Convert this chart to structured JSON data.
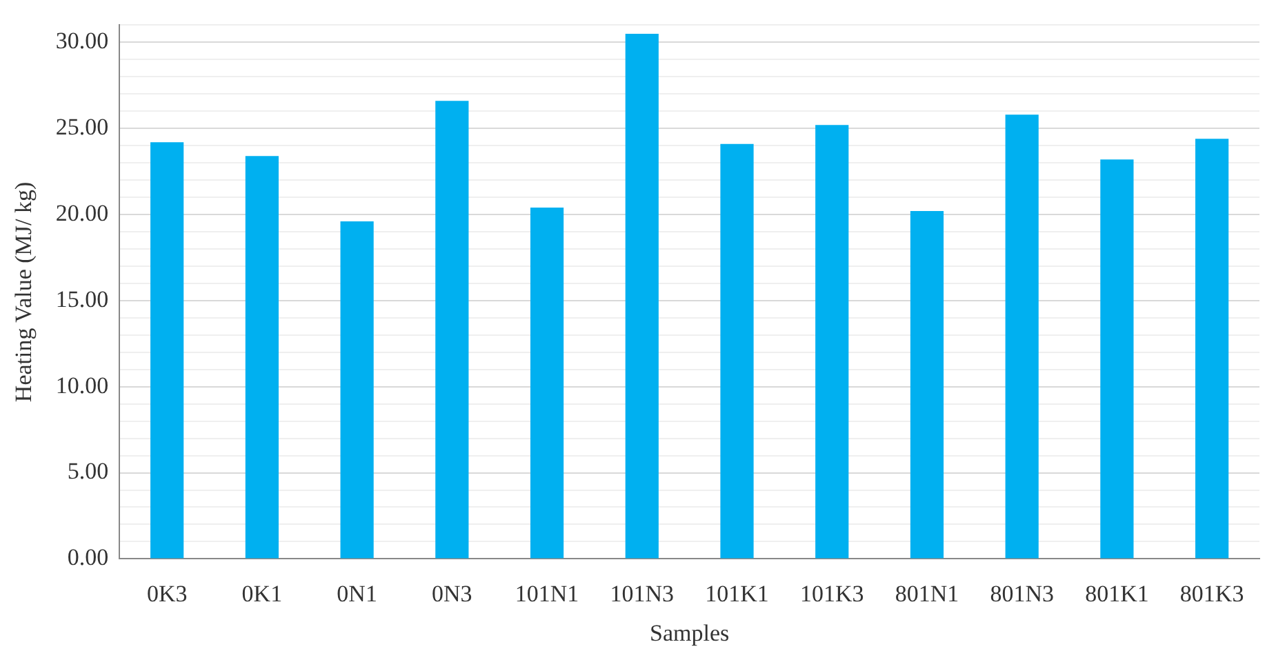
{
  "chart_data": {
    "type": "bar",
    "xlabel": "Samples",
    "ylabel": "Heating Value (MJ/ kg)",
    "categories": [
      "0K3",
      "0K1",
      "0N1",
      "0N3",
      "101N1",
      "101N3",
      "101K1",
      "101K3",
      "801N1",
      "801N3",
      "801K1",
      "801K3"
    ],
    "values": [
      24.2,
      23.4,
      19.6,
      26.6,
      20.4,
      30.5,
      24.1,
      25.2,
      20.2,
      25.8,
      23.2,
      24.4
    ],
    "color": "#00b0f0",
    "ylim": [
      0,
      31
    ],
    "yticks": [
      {
        "value": 0,
        "label": "0.00"
      },
      {
        "value": 1,
        "label": null
      },
      {
        "value": 2,
        "label": null
      },
      {
        "value": 3,
        "label": null
      },
      {
        "value": 4,
        "label": null
      },
      {
        "value": 5,
        "label": "5.00"
      },
      {
        "value": 6,
        "label": null
      },
      {
        "value": 7,
        "label": null
      },
      {
        "value": 8,
        "label": null
      },
      {
        "value": 9,
        "label": null
      },
      {
        "value": 10,
        "label": "10.00"
      },
      {
        "value": 11,
        "label": null
      },
      {
        "value": 12,
        "label": null
      },
      {
        "value": 13,
        "label": null
      },
      {
        "value": 14,
        "label": null
      },
      {
        "value": 15,
        "label": "15.00"
      },
      {
        "value": 16,
        "label": null
      },
      {
        "value": 17,
        "label": null
      },
      {
        "value": 18,
        "label": null
      },
      {
        "value": 19,
        "label": null
      },
      {
        "value": 20,
        "label": "20.00"
      },
      {
        "value": 21,
        "label": null
      },
      {
        "value": 22,
        "label": null
      },
      {
        "value": 23,
        "label": null
      },
      {
        "value": 24,
        "label": null
      },
      {
        "value": 25,
        "label": "25.00"
      },
      {
        "value": 26,
        "label": null
      },
      {
        "value": 27,
        "label": null
      },
      {
        "value": 28,
        "label": null
      },
      {
        "value": 29,
        "label": null
      },
      {
        "value": 30,
        "label": "30.00"
      },
      {
        "value": 31,
        "label": null
      }
    ],
    "grid": "y",
    "legend": false
  }
}
